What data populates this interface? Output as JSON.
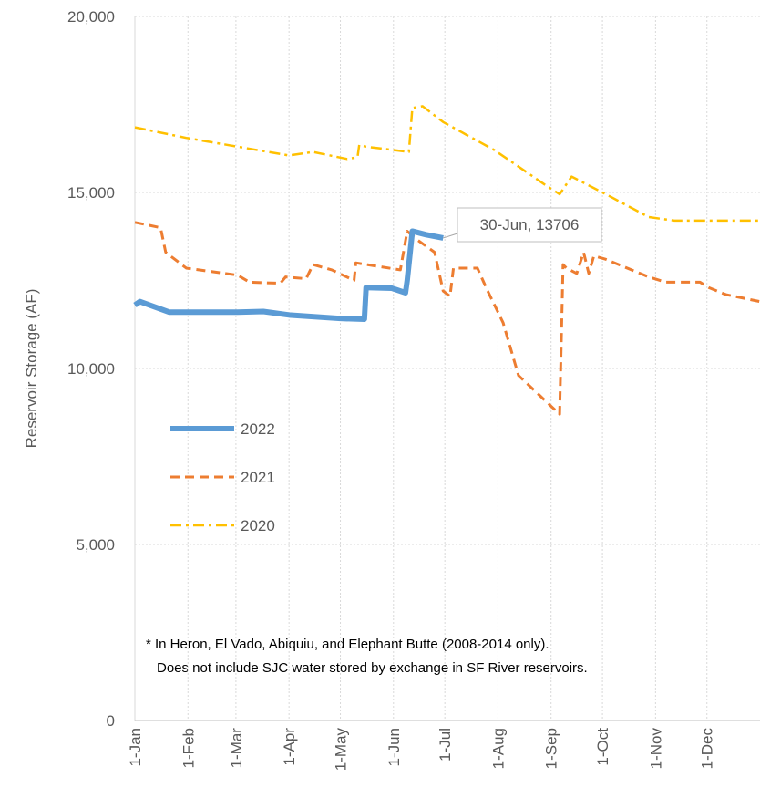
{
  "chart_data": {
    "type": "line",
    "y_label": "Reservoir Storage (AF)",
    "xlim": [
      0,
      365
    ],
    "xticks": [
      {
        "value": 0,
        "label": "1-Jan"
      },
      {
        "value": 31,
        "label": "1-Feb"
      },
      {
        "value": 59,
        "label": "1-Mar"
      },
      {
        "value": 90,
        "label": "1-Apr"
      },
      {
        "value": 120,
        "label": "1-May"
      },
      {
        "value": 151,
        "label": "1-Jun"
      },
      {
        "value": 181,
        "label": "1-Jul"
      },
      {
        "value": 212,
        "label": "1-Aug"
      },
      {
        "value": 243,
        "label": "1-Sep"
      },
      {
        "value": 273,
        "label": "1-Oct"
      },
      {
        "value": 304,
        "label": "1-Nov"
      },
      {
        "value": 334,
        "label": "1-Dec"
      }
    ],
    "ylim": [
      0,
      20000
    ],
    "yticks": [
      0,
      {
        "value": 5000,
        "label": "5,000"
      },
      {
        "value": 10000,
        "label": "10,000"
      },
      {
        "value": 15000,
        "label": "15,000"
      },
      {
        "value": 20000,
        "label": "20,000"
      }
    ],
    "grid": true,
    "series": [
      {
        "name": "2022",
        "color": "#5b9bd5",
        "style": "solid",
        "x": [
          0,
          3,
          20,
          60,
          75,
          90,
          120,
          134,
          135,
          150,
          158,
          159,
          162,
          170,
          180
        ],
        "values": [
          11800,
          11900,
          11600,
          11600,
          11620,
          11520,
          11420,
          11400,
          12300,
          12280,
          12150,
          12500,
          13900,
          13800,
          13706
        ]
      },
      {
        "name": "2021",
        "color": "#ed7d31",
        "style": "dashed",
        "x": [
          0,
          15,
          18,
          30,
          60,
          67,
          85,
          88,
          100,
          104,
          115,
          128,
          129,
          155,
          159,
          165,
          175,
          180,
          184,
          186,
          200,
          206,
          215,
          224,
          248,
          250,
          252,
          258,
          262,
          265,
          268,
          275,
          300,
          310,
          330,
          335,
          345,
          365
        ],
        "values": [
          14150,
          14000,
          13300,
          12850,
          12650,
          12450,
          12420,
          12600,
          12550,
          12950,
          12800,
          12500,
          13000,
          12800,
          13900,
          13650,
          13300,
          12200,
          12050,
          12850,
          12850,
          12200,
          11300,
          9800,
          8700,
          12950,
          12850,
          12700,
          13300,
          12700,
          13200,
          13100,
          12600,
          12450,
          12450,
          12300,
          12100,
          11900
        ]
      },
      {
        "name": "2020",
        "color": "#ffc000",
        "style": "dashdot",
        "x": [
          0,
          30,
          60,
          90,
          104,
          124,
          130,
          131,
          135,
          160,
          162,
          168,
          180,
          210,
          240,
          248,
          255,
          275,
          300,
          315,
          365
        ],
        "values": [
          16850,
          16550,
          16300,
          16050,
          16150,
          15950,
          16000,
          16350,
          16300,
          16150,
          17400,
          17450,
          17000,
          16200,
          15200,
          14950,
          15450,
          14950,
          14300,
          14200,
          14200
        ]
      }
    ],
    "annotation": "30-Jun, 13706",
    "note": [
      "* In Heron, El Vado, Abiquiu, and Elephant Butte (2008-2014 only).",
      "Does not include SJC water stored by exchange in SF River reservoirs."
    ]
  }
}
